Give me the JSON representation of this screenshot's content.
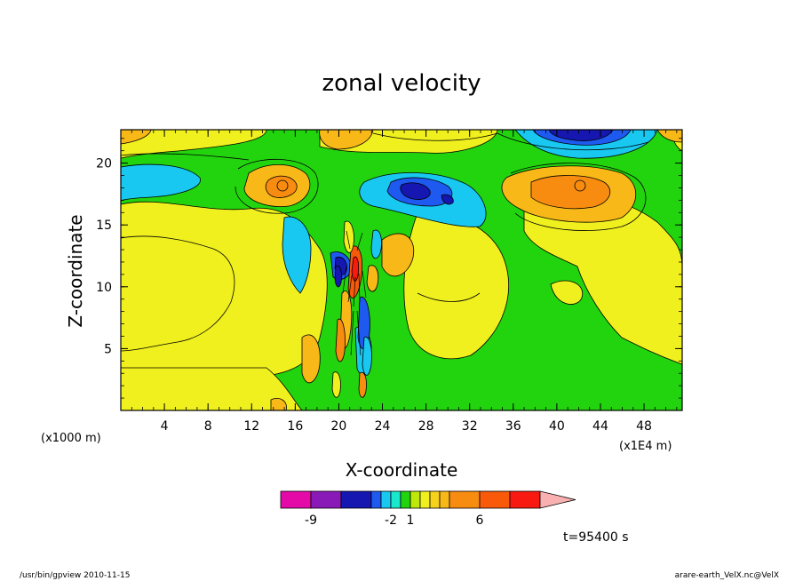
{
  "chart_data": {
    "type": "heatmap",
    "title": "zonal velocity",
    "xlabel": "X-coordinate",
    "ylabel": "Z-coordinate",
    "x_unit_note": "(x1E4 m)",
    "y_unit_note": "(x1000 m)",
    "xlim": [
      0,
      51.5
    ],
    "ylim": [
      0,
      22.7
    ],
    "x_ticks": [
      "4",
      "8",
      "12",
      "16",
      "20",
      "24",
      "28",
      "32",
      "36",
      "40",
      "44",
      "48"
    ],
    "y_ticks": [
      "5",
      "10",
      "15",
      "20"
    ],
    "colorbar": {
      "levels": [
        -9,
        -2,
        1,
        6
      ],
      "level_labels": [
        "-9",
        "-2",
        "1",
        "6"
      ],
      "colors": [
        "#e40aa8",
        "#8a1ab8",
        "#1616b0",
        "#1e5af0",
        "#18c8f0",
        "#19e8cc",
        "#22d40e",
        "#bde80a",
        "#f0f01e",
        "#f7d21a",
        "#f8b818",
        "#f88c10",
        "#f85a0a",
        "#f81a10",
        "#f87a7a",
        "#f8b0b0"
      ]
    },
    "features": [
      {
        "type": "positive max",
        "x": 42,
        "z": 18.5,
        "color": "#f8a018"
      },
      {
        "type": "positive max",
        "x": 14.5,
        "z": 18.4,
        "color": "#f8a018"
      },
      {
        "type": "negative min",
        "x": 28,
        "z": 17.6,
        "color": "#1a30d8"
      },
      {
        "type": "negative min",
        "x": 41.5,
        "z": 22.2,
        "color": "#1420c0"
      },
      {
        "type": "negative min",
        "x": 20.5,
        "z": 11.5,
        "color": "#1420c0"
      },
      {
        "type": "positive max",
        "x": 22,
        "z": 11.8,
        "color": "#f86010"
      }
    ],
    "time_label": "t=95400 s"
  },
  "footer": {
    "left": "/usr/bin/gpview  2010-11-15",
    "right": "arare-earth_VelX.nc@VelX"
  },
  "colors": {
    "background": "#22d40e",
    "axes": "#000000"
  }
}
